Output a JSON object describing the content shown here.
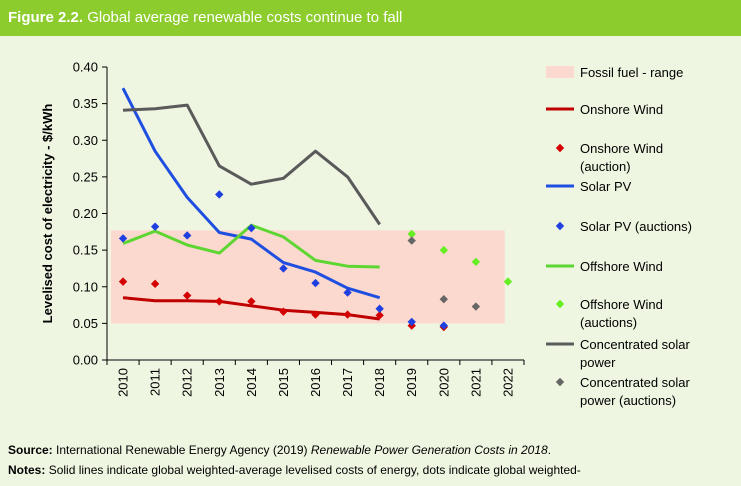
{
  "figure": {
    "label": "Figure 2.2.",
    "title": "Global average renewable costs continue to fall"
  },
  "source": {
    "label": "Source:",
    "text": "International Renewable Energy Agency (2019) ",
    "italic": "Renewable Power Generation Costs in 2018",
    "end": "."
  },
  "notes": {
    "label": "Notes:",
    "text": "Solid lines indicate global weighted-average levelised costs of energy, dots indicate global weighted-"
  },
  "chart_data": {
    "type": "line",
    "ylabel": "Levelised cost of electricity - $/kWh",
    "xlabel": "",
    "ylim": [
      0,
      0.4
    ],
    "yticks": [
      "0.00",
      "0.05",
      "0.10",
      "0.15",
      "0.20",
      "0.25",
      "0.30",
      "0.35",
      "0.40"
    ],
    "categories": [
      "2010",
      "2011",
      "2012",
      "2013",
      "2014",
      "2015",
      "2016",
      "2017",
      "2018",
      "2019",
      "2020",
      "2021",
      "2022"
    ],
    "band": {
      "name": "Fossil fuel - range",
      "low": 0.05,
      "high": 0.177,
      "color": "#fbd9cf"
    },
    "lines": [
      {
        "name": "Onshore Wind",
        "color": "#c00000",
        "values": [
          0.085,
          0.081,
          0.081,
          0.08,
          0.074,
          0.068,
          0.065,
          0.062,
          0.056
        ]
      },
      {
        "name": "Solar PV",
        "color": "#1f4fe0",
        "values": [
          0.371,
          0.285,
          0.222,
          0.174,
          0.165,
          0.133,
          0.12,
          0.098,
          0.085
        ]
      },
      {
        "name": "Offshore Wind",
        "color": "#5ed632",
        "values": [
          0.159,
          0.176,
          0.157,
          0.146,
          0.184,
          0.168,
          0.136,
          0.128,
          0.127
        ]
      },
      {
        "name": "Concentrated solar power",
        "color": "#5a5a5a",
        "values": [
          0.341,
          0.343,
          0.348,
          0.265,
          0.24,
          0.248,
          0.285,
          0.25,
          0.185
        ]
      }
    ],
    "auctions": [
      {
        "name": "Onshore Wind (auction)",
        "color": "#d40000",
        "points": [
          [
            0,
            0.107
          ],
          [
            1,
            0.104
          ],
          [
            2,
            0.088
          ],
          [
            3,
            0.08
          ],
          [
            4,
            0.08
          ],
          [
            5,
            0.066
          ],
          [
            6,
            0.062
          ],
          [
            7,
            0.062
          ],
          [
            8,
            0.061
          ],
          [
            9,
            0.047
          ],
          [
            10,
            0.045
          ]
        ]
      },
      {
        "name": "Solar PV (auctions)",
        "color": "#1f3fe0",
        "points": [
          [
            0,
            0.166
          ],
          [
            1,
            0.182
          ],
          [
            2,
            0.17
          ],
          [
            3,
            0.226
          ],
          [
            4,
            0.18
          ],
          [
            5,
            0.125
          ],
          [
            6,
            0.105
          ],
          [
            7,
            0.092
          ],
          [
            8,
            0.07
          ],
          [
            9,
            0.052
          ],
          [
            10,
            0.047
          ]
        ]
      },
      {
        "name": "Offshore Wind (auctions)",
        "color": "#66ee22",
        "points": [
          [
            9,
            0.172
          ],
          [
            10,
            0.15
          ],
          [
            11,
            0.134
          ],
          [
            12,
            0.107
          ]
        ]
      },
      {
        "name": "Concentrated solar power (auctions)",
        "color": "#666666",
        "points": [
          [
            9,
            0.163
          ],
          [
            10,
            0.083
          ],
          [
            11,
            0.073
          ]
        ]
      }
    ],
    "legend": [
      {
        "kind": "band",
        "color": "#fbd9cf",
        "lines": [
          "Fossil fuel - range"
        ]
      },
      {
        "kind": "line",
        "color": "#c00000",
        "lines": [
          "Onshore Wind"
        ]
      },
      {
        "kind": "dot",
        "color": "#d40000",
        "lines": [
          "Onshore Wind",
          "(auction)"
        ]
      },
      {
        "kind": "line",
        "color": "#1f4fe0",
        "lines": [
          "Solar PV"
        ]
      },
      {
        "kind": "dot",
        "color": "#1f3fe0",
        "lines": [
          "Solar PV (auctions)"
        ]
      },
      {
        "kind": "line",
        "color": "#5ed632",
        "lines": [
          "Offshore Wind"
        ]
      },
      {
        "kind": "dot",
        "color": "#66ee22",
        "lines": [
          "Offshore Wind",
          "(auctions)"
        ]
      },
      {
        "kind": "line",
        "color": "#5a5a5a",
        "lines": [
          "Concentrated solar",
          "power"
        ]
      },
      {
        "kind": "dot",
        "color": "#666666",
        "lines": [
          "Concentrated solar",
          "power (auctions)"
        ]
      }
    ],
    "legend_position": "right"
  }
}
